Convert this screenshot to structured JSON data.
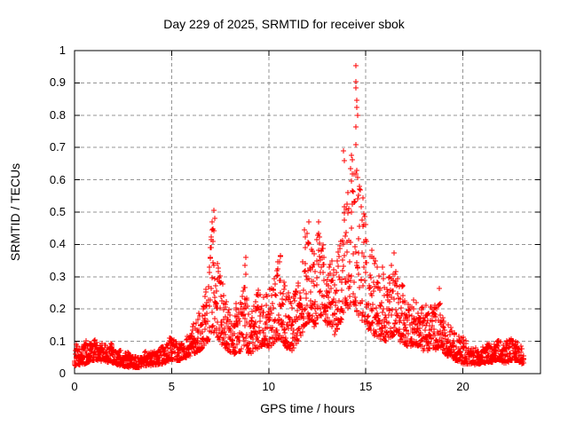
{
  "window": {
    "background": "#ffffff",
    "text_color": "#000000"
  },
  "chart_data": {
    "type": "scatter",
    "title": "Day 229 of 2025, SRMTID for receiver sbok",
    "xlabel": "GPS time / hours",
    "ylabel": "SRMTID / TECUs",
    "xlim": [
      0,
      24
    ],
    "ylim": [
      0,
      1
    ],
    "xticks": [
      {
        "value": 0,
        "label": "0"
      },
      {
        "value": 5,
        "label": "5"
      },
      {
        "value": 10,
        "label": "10"
      },
      {
        "value": 15,
        "label": "15"
      },
      {
        "value": 20,
        "label": "20"
      }
    ],
    "yticks": [
      {
        "value": 0,
        "label": "0"
      },
      {
        "value": 0.1,
        "label": "0.1"
      },
      {
        "value": 0.2,
        "label": "0.2"
      },
      {
        "value": 0.3,
        "label": "0.3"
      },
      {
        "value": 0.4,
        "label": "0.4"
      },
      {
        "value": 0.5,
        "label": "0.5"
      },
      {
        "value": 0.6,
        "label": "0.6"
      },
      {
        "value": 0.7,
        "label": "0.7"
      },
      {
        "value": 0.8,
        "label": "0.8"
      },
      {
        "value": 0.9,
        "label": "0.9"
      },
      {
        "value": 1,
        "label": "1"
      }
    ],
    "grid": true,
    "grid_color": "#949494",
    "legend": "none",
    "marker": "plus",
    "marker_size": 7,
    "marker_color": "#ff0000",
    "border_color": "#000000",
    "t_range": [
      0.0,
      23.15
    ],
    "sample_rate_per_hour": 100,
    "seed": 229,
    "value_spread_shape": 1.7,
    "envelope": [
      [
        0.0,
        0.025,
        0.085
      ],
      [
        0.5,
        0.03,
        0.1
      ],
      [
        0.9,
        0.04,
        0.115
      ],
      [
        1.3,
        0.04,
        0.1
      ],
      [
        1.8,
        0.035,
        0.095
      ],
      [
        2.3,
        0.025,
        0.075
      ],
      [
        2.8,
        0.02,
        0.065
      ],
      [
        3.4,
        0.02,
        0.06
      ],
      [
        4.0,
        0.025,
        0.07
      ],
      [
        4.6,
        0.03,
        0.09
      ],
      [
        5.0,
        0.045,
        0.125
      ],
      [
        5.35,
        0.04,
        0.1
      ],
      [
        5.8,
        0.05,
        0.12
      ],
      [
        6.2,
        0.06,
        0.16
      ],
      [
        6.6,
        0.08,
        0.24
      ],
      [
        6.9,
        0.1,
        0.35
      ],
      [
        7.15,
        0.13,
        0.5
      ],
      [
        7.35,
        0.11,
        0.44
      ],
      [
        7.6,
        0.09,
        0.3
      ],
      [
        7.9,
        0.07,
        0.22
      ],
      [
        8.2,
        0.06,
        0.2
      ],
      [
        8.55,
        0.07,
        0.24
      ],
      [
        8.8,
        0.09,
        0.36
      ],
      [
        9.0,
        0.06,
        0.2
      ],
      [
        9.35,
        0.07,
        0.26
      ],
      [
        9.7,
        0.09,
        0.28
      ],
      [
        10.0,
        0.08,
        0.26
      ],
      [
        10.35,
        0.1,
        0.31
      ],
      [
        10.6,
        0.11,
        0.36
      ],
      [
        10.9,
        0.08,
        0.26
      ],
      [
        11.2,
        0.07,
        0.22
      ],
      [
        11.55,
        0.1,
        0.31
      ],
      [
        11.85,
        0.14,
        0.44
      ],
      [
        12.1,
        0.16,
        0.47
      ],
      [
        12.35,
        0.14,
        0.42
      ],
      [
        12.6,
        0.18,
        0.46
      ],
      [
        12.85,
        0.17,
        0.44
      ],
      [
        13.1,
        0.14,
        0.4
      ],
      [
        13.4,
        0.12,
        0.38
      ],
      [
        13.7,
        0.16,
        0.52
      ],
      [
        13.95,
        0.2,
        0.68
      ],
      [
        14.1,
        0.2,
        0.6
      ],
      [
        14.3,
        0.22,
        0.68
      ],
      [
        14.5,
        0.2,
        0.64
      ],
      [
        14.7,
        0.17,
        0.56
      ],
      [
        15.0,
        0.15,
        0.48
      ],
      [
        15.35,
        0.12,
        0.4
      ],
      [
        15.7,
        0.11,
        0.36
      ],
      [
        16.05,
        0.1,
        0.31
      ],
      [
        16.45,
        0.12,
        0.38
      ],
      [
        16.75,
        0.1,
        0.28
      ],
      [
        17.1,
        0.08,
        0.25
      ],
      [
        17.5,
        0.09,
        0.22
      ],
      [
        17.95,
        0.07,
        0.2
      ],
      [
        18.4,
        0.07,
        0.22
      ],
      [
        18.8,
        0.08,
        0.27
      ],
      [
        19.05,
        0.06,
        0.16
      ],
      [
        19.4,
        0.05,
        0.14
      ],
      [
        19.7,
        0.04,
        0.12
      ],
      [
        20.0,
        0.03,
        0.105
      ],
      [
        20.5,
        0.028,
        0.085
      ],
      [
        21.0,
        0.03,
        0.08
      ],
      [
        21.5,
        0.035,
        0.1
      ],
      [
        21.8,
        0.045,
        0.12
      ],
      [
        22.1,
        0.03,
        0.09
      ],
      [
        22.5,
        0.04,
        0.105
      ],
      [
        22.8,
        0.04,
        0.1
      ],
      [
        23.05,
        0.03,
        0.08
      ],
      [
        23.15,
        0.03,
        0.07
      ]
    ],
    "outlier_points": [
      [
        14.5,
        0.953
      ],
      [
        14.5,
        0.905
      ],
      [
        14.47,
        0.885
      ],
      [
        14.52,
        0.845
      ],
      [
        14.55,
        0.825
      ],
      [
        14.49,
        0.765
      ],
      [
        14.51,
        0.71
      ],
      [
        14.58,
        0.8
      ],
      [
        13.85,
        0.69
      ],
      [
        13.9,
        0.66
      ],
      [
        7.18,
        0.505
      ],
      [
        7.22,
        0.48
      ],
      [
        8.8,
        0.36
      ],
      [
        8.78,
        0.335
      ],
      [
        12.05,
        0.47
      ],
      [
        16.45,
        0.375
      ],
      [
        18.8,
        0.265
      ],
      [
        10.62,
        0.365
      ]
    ]
  }
}
